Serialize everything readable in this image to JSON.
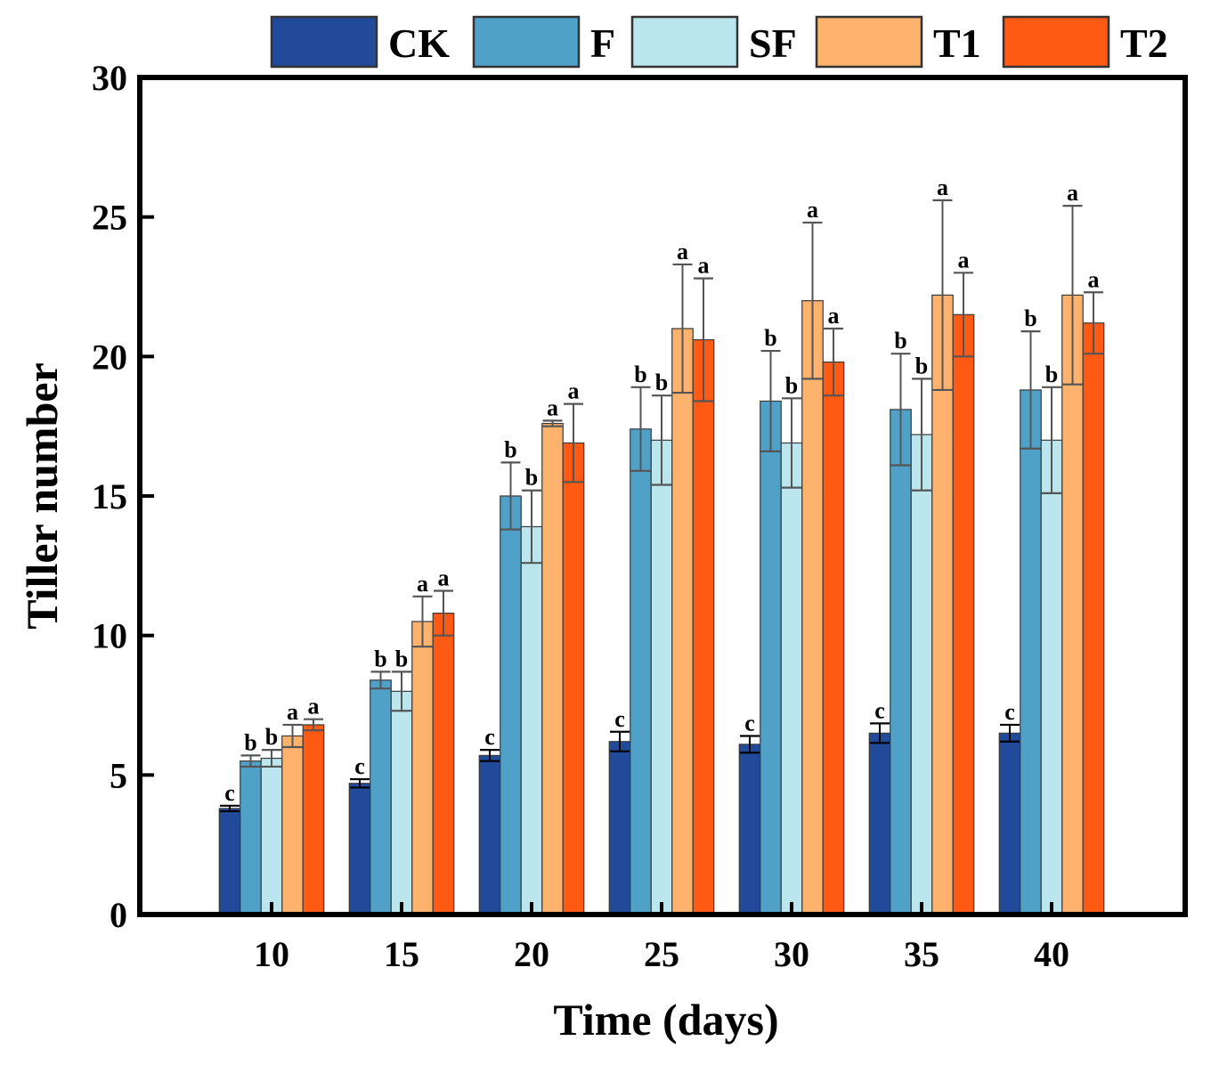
{
  "chart_data": {
    "type": "bar",
    "title": "",
    "xlabel": "Time (days)",
    "ylabel": "Tiller number",
    "ylim": [
      0,
      30
    ],
    "yticks": [
      "0",
      "5",
      "10",
      "15",
      "20",
      "25",
      "30"
    ],
    "categories": [
      "10",
      "15",
      "20",
      "25",
      "30",
      "35",
      "40"
    ],
    "legend_position": "top",
    "series": [
      {
        "name": "CK",
        "color": "#214B9A",
        "values": [
          3.8,
          4.7,
          5.7,
          6.2,
          6.1,
          6.5,
          6.5
        ],
        "errors": [
          0.1,
          0.15,
          0.2,
          0.35,
          0.3,
          0.35,
          0.3
        ],
        "labels": [
          "c",
          "c",
          "c",
          "c",
          "c",
          "c",
          "c"
        ]
      },
      {
        "name": "F",
        "color": "#4FA1C8",
        "values": [
          5.5,
          8.4,
          15.0,
          17.4,
          18.4,
          18.1,
          18.8
        ],
        "errors": [
          0.2,
          0.3,
          1.2,
          1.5,
          1.8,
          2.0,
          2.1
        ],
        "labels": [
          "b",
          "b",
          "b",
          "b",
          "b",
          "b",
          "b"
        ]
      },
      {
        "name": "SF",
        "color": "#BCE6EE",
        "values": [
          5.6,
          8.0,
          13.9,
          17.0,
          16.9,
          17.2,
          17.0
        ],
        "errors": [
          0.3,
          0.7,
          1.3,
          1.6,
          1.6,
          2.0,
          1.9
        ],
        "labels": [
          "b",
          "b",
          "b",
          "b",
          "b",
          "b",
          "b"
        ]
      },
      {
        "name": "T1",
        "color": "#FDB26E",
        "values": [
          6.4,
          10.5,
          17.6,
          21.0,
          22.0,
          22.2,
          22.2
        ],
        "errors": [
          0.4,
          0.9,
          0.1,
          2.3,
          2.8,
          3.4,
          3.2
        ],
        "labels": [
          "a",
          "a",
          "a",
          "a",
          "a",
          "a",
          "a"
        ]
      },
      {
        "name": "T2",
        "color": "#FF5A14",
        "values": [
          6.8,
          10.8,
          16.9,
          20.6,
          19.8,
          21.5,
          21.2
        ],
        "errors": [
          0.2,
          0.8,
          1.4,
          2.2,
          1.2,
          1.5,
          1.1
        ],
        "labels": [
          "a",
          "a",
          "a",
          "a",
          "a",
          "a",
          "a"
        ]
      }
    ]
  }
}
